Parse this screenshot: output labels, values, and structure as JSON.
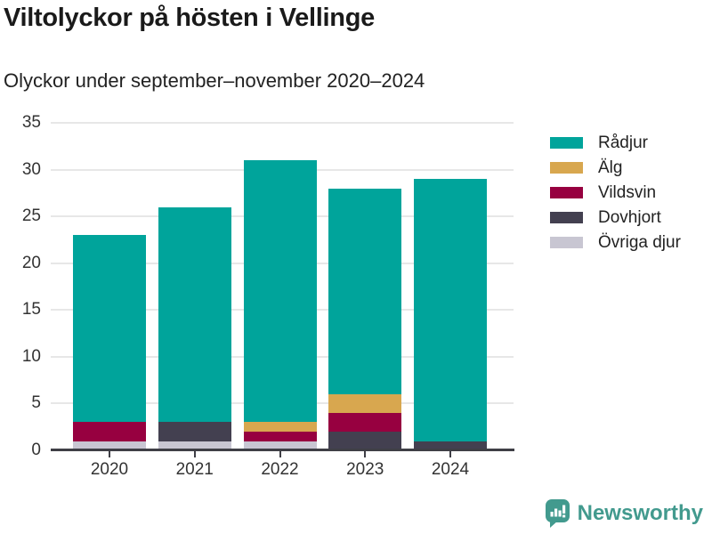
{
  "header": {
    "title": "Viltolyckor på hösten i Vellinge",
    "subtitle": "Olyckor under september–november 2020–2024"
  },
  "chart_data": {
    "type": "bar",
    "stacked": true,
    "title": "Viltolyckor på hösten i Vellinge",
    "subtitle": "Olyckor under september–november 2020–2024",
    "categories": [
      "2020",
      "2021",
      "2022",
      "2023",
      "2024"
    ],
    "series": [
      {
        "name": "Rådjur",
        "color": "#00a49b",
        "values": [
          20,
          23,
          28,
          22,
          28
        ]
      },
      {
        "name": "Älg",
        "color": "#d8a74f",
        "values": [
          0,
          0,
          1,
          2,
          0
        ]
      },
      {
        "name": "Vildsvin",
        "color": "#970040",
        "values": [
          2,
          0,
          1,
          2,
          0
        ]
      },
      {
        "name": "Dovhjort",
        "color": "#434050",
        "values": [
          0,
          2,
          0,
          2,
          1
        ]
      },
      {
        "name": "Övriga djur",
        "color": "#c8c6d2",
        "values": [
          1,
          1,
          1,
          0,
          0
        ]
      }
    ],
    "stack_order_bottom_to_top": [
      "Övriga djur",
      "Dovhjort",
      "Vildsvin",
      "Älg",
      "Rådjur"
    ],
    "totals": [
      23,
      26,
      31,
      28,
      29
    ],
    "xlabel": "",
    "ylabel": "",
    "ylim": [
      0,
      35
    ],
    "yticks": [
      0,
      5,
      10,
      15,
      20,
      25,
      30,
      35
    ],
    "grid": "horizontal",
    "legend_position": "right"
  },
  "colors": {
    "axis_line": "#3f3f46",
    "gridline": "#e7e7e7",
    "tick_label": "#333333",
    "title": "#1a1a1a",
    "brand": "#429a8e"
  },
  "footer": {
    "brand": "Newsworthy"
  }
}
